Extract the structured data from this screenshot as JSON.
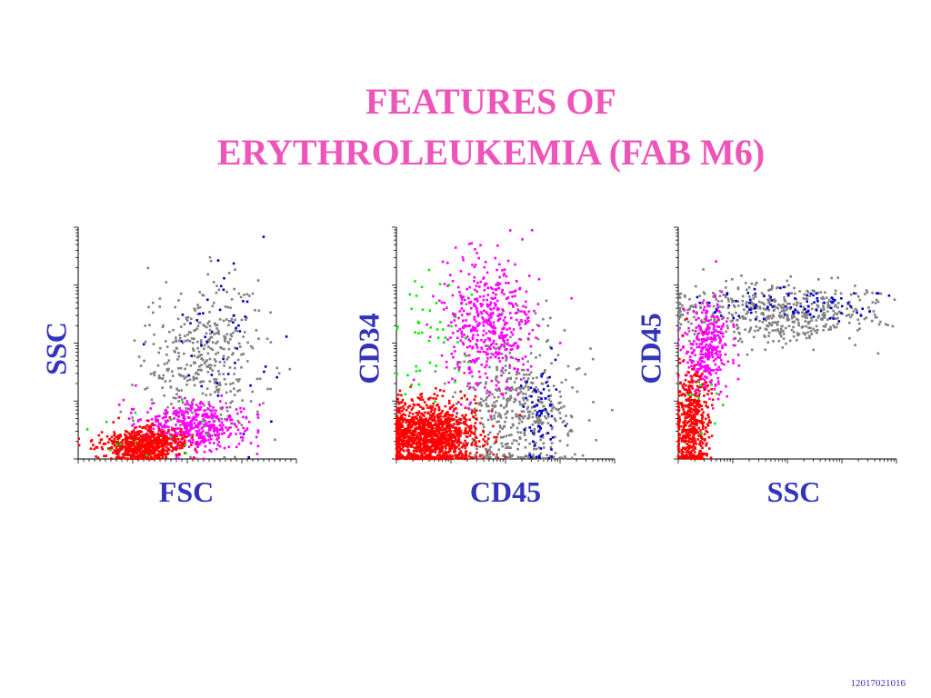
{
  "slide": {
    "title_line1": "FEATURES OF",
    "title_line2": "ERYTHROLEUKEMIA (FAB M6)",
    "footer": "12017021016",
    "title_color": "#ee55bb",
    "label_color": "#3333bb"
  },
  "population_colors": {
    "red": "#ff0000",
    "magenta": "#ff00ff",
    "gray": "#808080",
    "blue": "#0000cc",
    "green": "#00ee00",
    "yellow": "#dddd00"
  },
  "chart_data": [
    {
      "type": "scatter",
      "xlabel": "FSC",
      "ylabel": "SSC",
      "xlim": [
        0,
        1
      ],
      "ylim": [
        0,
        1
      ],
      "x_scale": "linear",
      "y_scale": "log",
      "populations": [
        {
          "color": "red",
          "cx": 0.3,
          "cy": 0.06,
          "sx": 0.09,
          "sy": 0.035,
          "n": 700
        },
        {
          "color": "magenta",
          "cx": 0.52,
          "cy": 0.14,
          "sx": 0.12,
          "sy": 0.05,
          "n": 450
        },
        {
          "color": "gray",
          "cx": 0.58,
          "cy": 0.42,
          "sx": 0.13,
          "sy": 0.16,
          "n": 420
        },
        {
          "color": "blue",
          "cx": 0.63,
          "cy": 0.48,
          "sx": 0.14,
          "sy": 0.2,
          "n": 45
        },
        {
          "color": "green",
          "cx": 0.3,
          "cy": 0.12,
          "sx": 0.15,
          "sy": 0.08,
          "n": 15
        }
      ]
    },
    {
      "type": "scatter",
      "xlabel": "CD45",
      "ylabel": "CD34",
      "xlim": [
        0,
        1
      ],
      "ylim": [
        0,
        1
      ],
      "x_scale": "log",
      "y_scale": "log",
      "populations": [
        {
          "color": "red",
          "cx": 0.15,
          "cy": 0.1,
          "sx": 0.11,
          "sy": 0.07,
          "n": 1300
        },
        {
          "color": "magenta",
          "cx": 0.42,
          "cy": 0.58,
          "sx": 0.1,
          "sy": 0.14,
          "n": 480
        },
        {
          "color": "gray",
          "cx": 0.55,
          "cy": 0.2,
          "sx": 0.14,
          "sy": 0.17,
          "n": 520
        },
        {
          "color": "blue",
          "cx": 0.66,
          "cy": 0.18,
          "sx": 0.05,
          "sy": 0.1,
          "n": 70
        },
        {
          "color": "green",
          "cx": 0.16,
          "cy": 0.55,
          "sx": 0.1,
          "sy": 0.14,
          "n": 45
        }
      ]
    },
    {
      "type": "scatter",
      "xlabel": "SSC",
      "ylabel": "CD45",
      "xlim": [
        0,
        1
      ],
      "ylim": [
        0,
        1
      ],
      "x_scale": "log",
      "y_scale": "log",
      "populations": [
        {
          "color": "red",
          "cx": 0.06,
          "cy": 0.15,
          "sx": 0.04,
          "sy": 0.12,
          "n": 500
        },
        {
          "color": "magenta",
          "cx": 0.13,
          "cy": 0.47,
          "sx": 0.05,
          "sy": 0.1,
          "n": 340
        },
        {
          "color": "gray",
          "cx": 0.45,
          "cy": 0.63,
          "sx": 0.25,
          "sy": 0.06,
          "n": 560
        },
        {
          "color": "blue",
          "cx": 0.55,
          "cy": 0.67,
          "sx": 0.25,
          "sy": 0.04,
          "n": 90
        },
        {
          "color": "green",
          "cx": 0.15,
          "cy": 0.25,
          "sx": 0.06,
          "sy": 0.08,
          "n": 10
        }
      ]
    }
  ]
}
